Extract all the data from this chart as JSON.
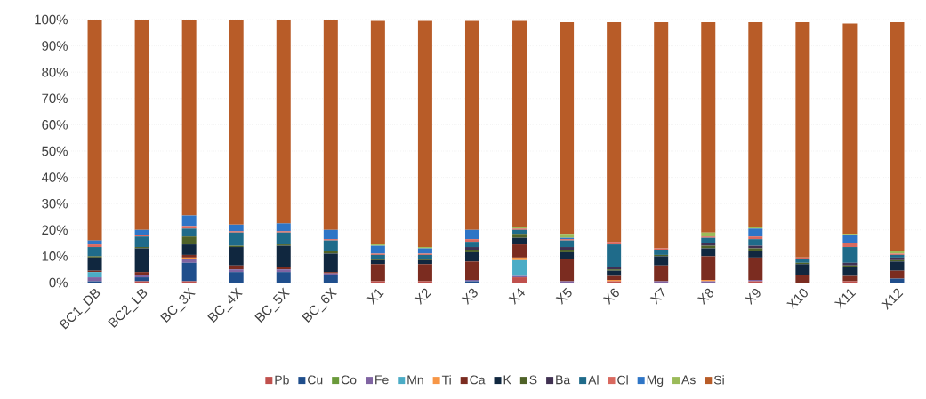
{
  "chart_data": {
    "type": "bar",
    "stacked": true,
    "grid": "y",
    "legend": "bottom",
    "categories": [
      "BC1_DB",
      "BC2_LB",
      "BC_3X",
      "BC_4X",
      "BC_5X",
      "BC_6X",
      "X1",
      "X2",
      "X3",
      "X4",
      "X5",
      "X6",
      "X7",
      "X8",
      "X9",
      "X10",
      "X11",
      "X12"
    ],
    "ylim": [
      0,
      100
    ],
    "yticks": [
      {
        "value": 0,
        "label": "0%"
      },
      {
        "value": 10,
        "label": "10%"
      },
      {
        "value": 20,
        "label": "20%"
      },
      {
        "value": 30,
        "label": "30%"
      },
      {
        "value": 40,
        "label": "40%"
      },
      {
        "value": 50,
        "label": "50%"
      },
      {
        "value": 60,
        "label": "60%"
      },
      {
        "value": 70,
        "label": "70%"
      },
      {
        "value": 80,
        "label": "80%"
      },
      {
        "value": 90,
        "label": "90%"
      },
      {
        "value": 100,
        "label": "100%"
      }
    ],
    "series": [
      {
        "name": "Pb",
        "color": "#c0504d",
        "values": [
          0,
          0.5,
          0.5,
          0,
          0,
          0,
          0.5,
          0.5,
          0,
          2,
          0,
          0.5,
          0,
          0,
          0.5,
          0,
          0.5,
          0
        ]
      },
      {
        "name": "Cu",
        "color": "#1f4e8c",
        "values": [
          0.5,
          1.5,
          7,
          4,
          4,
          3,
          0,
          0,
          0.5,
          0,
          0,
          0,
          0,
          0,
          0,
          0,
          0,
          1.5
        ]
      },
      {
        "name": "Co",
        "color": "#6a9a3a",
        "values": [
          0,
          0,
          0,
          0,
          0,
          0,
          0,
          0,
          0,
          0,
          0,
          0,
          0,
          0,
          0,
          0,
          0,
          0
        ]
      },
      {
        "name": "Fe",
        "color": "#8064a2",
        "values": [
          1.5,
          1,
          1.5,
          1,
          1,
          0.5,
          0,
          0,
          0.5,
          0.5,
          0.5,
          0,
          0.5,
          0.5,
          0.5,
          0,
          0,
          0
        ]
      },
      {
        "name": "Mn",
        "color": "#4bacc6",
        "values": [
          2,
          0,
          0,
          0,
          0,
          0,
          0,
          0,
          0,
          6,
          0,
          0,
          0,
          0,
          0,
          0,
          0,
          0
        ]
      },
      {
        "name": "Ti",
        "color": "#f79646",
        "values": [
          0,
          0,
          0.5,
          0,
          0,
          0,
          0,
          0,
          0,
          1,
          0,
          0.5,
          0,
          0.5,
          0,
          0,
          0,
          0
        ]
      },
      {
        "name": "Ca",
        "color": "#7b2c20",
        "values": [
          0.5,
          1,
          1,
          1.5,
          1,
          0.5,
          6.5,
          6.5,
          7,
          5,
          8.5,
          1.5,
          6,
          9,
          8.5,
          3,
          2,
          3
        ]
      },
      {
        "name": "K",
        "color": "#10273f",
        "values": [
          5,
          9,
          4,
          7,
          8,
          7,
          1.5,
          1.5,
          3.5,
          2.5,
          2.5,
          2,
          3.5,
          3,
          2.5,
          4,
          3.5,
          3.5
        ]
      },
      {
        "name": "S",
        "color": "#4f6228",
        "values": [
          0.5,
          0.5,
          3,
          0.5,
          0.5,
          1,
          0.5,
          0.5,
          1,
          1.5,
          1,
          0.5,
          0.5,
          1,
          1,
          0.5,
          0.5,
          0.5
        ]
      },
      {
        "name": "Ba",
        "color": "#403152",
        "values": [
          0,
          0,
          0,
          0,
          0,
          0,
          0,
          0,
          1,
          0,
          1,
          1,
          0,
          1,
          1,
          0,
          1,
          1
        ]
      },
      {
        "name": "Al",
        "color": "#1f6b8a",
        "values": [
          3.5,
          4,
          3,
          5,
          4.5,
          4,
          1.5,
          1.5,
          2,
          1.5,
          2.5,
          8.5,
          2,
          2,
          2.5,
          1.5,
          6,
          1
        ]
      },
      {
        "name": "Cl",
        "color": "#d9695f",
        "values": [
          1,
          0.5,
          1,
          0.5,
          0.5,
          0.5,
          0.5,
          0.5,
          1,
          0.5,
          0.5,
          1,
          0.5,
          0.5,
          1,
          0.5,
          1.5,
          0.5
        ]
      },
      {
        "name": "Mg",
        "color": "#2e75c6",
        "values": [
          1.5,
          2,
          4,
          2.5,
          3,
          3.5,
          3,
          2,
          3.5,
          0,
          0.5,
          0,
          0,
          0,
          3,
          0,
          3,
          0
        ]
      },
      {
        "name": "As",
        "color": "#9bbb59",
        "values": [
          0,
          0,
          0,
          0,
          0,
          0,
          0.5,
          0.5,
          0,
          0.5,
          1.5,
          0,
          0,
          1.5,
          0.5,
          0,
          0.5,
          1
        ]
      },
      {
        "name": "Si",
        "color": "#b85c28",
        "values": [
          84,
          80,
          74.5,
          78,
          77.5,
          80,
          85,
          86,
          79.5,
          78.5,
          80.5,
          83.5,
          86,
          80,
          78,
          89.5,
          80,
          87
        ]
      }
    ]
  }
}
